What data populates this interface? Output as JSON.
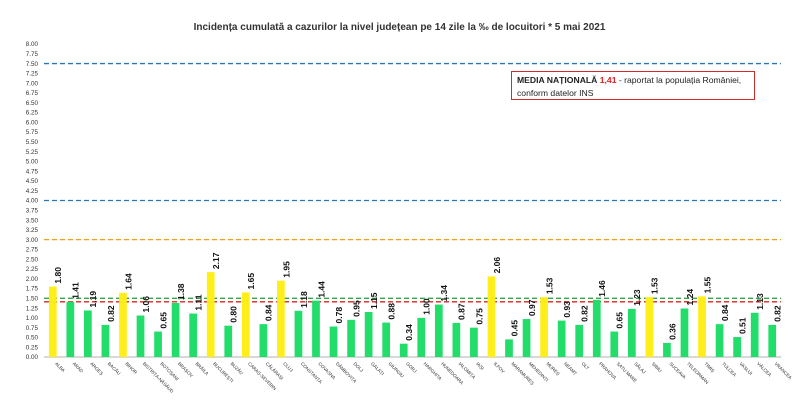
{
  "chart_data": {
    "type": "bar",
    "title": "Incidența cumulată a cazurilor la nivel județean pe 14 zile la ‰ de locuitori *   5 mai 2021",
    "xlabel": "",
    "ylabel": "",
    "ylim": [
      0,
      8
    ],
    "ytick_step": 0.25,
    "grid": false,
    "categories": [
      "ALBA",
      "ARAD",
      "ARGEȘ",
      "BACĂU",
      "BIHOR",
      "BISTRIȚA-NĂSĂUD",
      "BOTOȘANI",
      "BRAȘOV",
      "BRĂILA",
      "BUCUREȘTI",
      "BUZĂU",
      "CARAȘ-SEVERIN",
      "CĂLĂRAȘI",
      "CLUJ",
      "CONSTANȚA",
      "COVASNA",
      "DÂMBOVIȚA",
      "DOLJ",
      "GALAȚI",
      "GIURGIU",
      "GORJ",
      "HARGHITA",
      "HUNEDOARA",
      "IALOMIȚA",
      "IAȘI",
      "ILFOV",
      "MARAMUREȘ",
      "MEHEDINȚI",
      "MUREȘ",
      "NEAMȚ",
      "OLT",
      "PRAHOVA",
      "SATU MARE",
      "SĂLAJ",
      "SIBIU",
      "SUCEAVA",
      "TELEORMAN",
      "TIMIȘ",
      "TULCEA",
      "VASLUI",
      "VÂLCEA",
      "VRANCEA"
    ],
    "values": [
      1.8,
      1.41,
      1.19,
      0.82,
      1.64,
      1.06,
      0.65,
      1.38,
      1.11,
      2.17,
      0.8,
      1.65,
      0.84,
      1.95,
      1.18,
      1.44,
      0.78,
      0.95,
      1.15,
      0.88,
      0.34,
      1.0,
      1.34,
      0.87,
      0.75,
      2.06,
      0.45,
      0.97,
      1.53,
      0.93,
      0.82,
      1.46,
      0.65,
      1.23,
      1.53,
      0.36,
      1.24,
      1.55,
      0.84,
      0.51,
      1.13,
      0.82
    ],
    "value_labels": [
      "1.80",
      "1.41",
      "1.19",
      "0.82",
      "1.64",
      "1.06",
      "0.65",
      "1.38",
      "1.11",
      "2.17",
      "0.80",
      "1.65",
      "0.84",
      "1.95",
      "1.18",
      "1.44",
      "0.78",
      "0.95",
      "1.15",
      "0.88",
      "0.34",
      "1.00",
      "1.34",
      "0.87",
      "0.75",
      "2.06",
      "0.45",
      "0.97",
      "1.53",
      "0.93",
      "0.82",
      "1.46",
      "0.65",
      "1.23",
      "1.53",
      "0.36",
      "1.24",
      "1.55",
      "0.84",
      "0.51",
      "1.13",
      "0.82"
    ],
    "highlighted": [
      "ALBA",
      "BIHOR",
      "BUCUREȘTI",
      "CARAȘ-SEVERIN",
      "CLUJ",
      "ILFOV",
      "MUREȘ",
      "SIBIU",
      "TIMIȘ"
    ],
    "reference_lines": [
      {
        "value": 7.5,
        "color": "#2e74b5"
      },
      {
        "value": 4.0,
        "color": "#2e74b5"
      },
      {
        "value": 3.0,
        "color": "#f0a020"
      },
      {
        "value": 1.5,
        "color": "#2ea84a"
      },
      {
        "value": 1.41,
        "color": "#e02020"
      }
    ],
    "colors": {
      "normal": "#22dd6a",
      "highlight": "#ffee1a"
    },
    "annotation": {
      "lead": "MEDIA NAȚIONALĂ",
      "value": "1,41",
      "rest": " - raportat la populația României,",
      "line2": "conform datelor INS"
    }
  }
}
